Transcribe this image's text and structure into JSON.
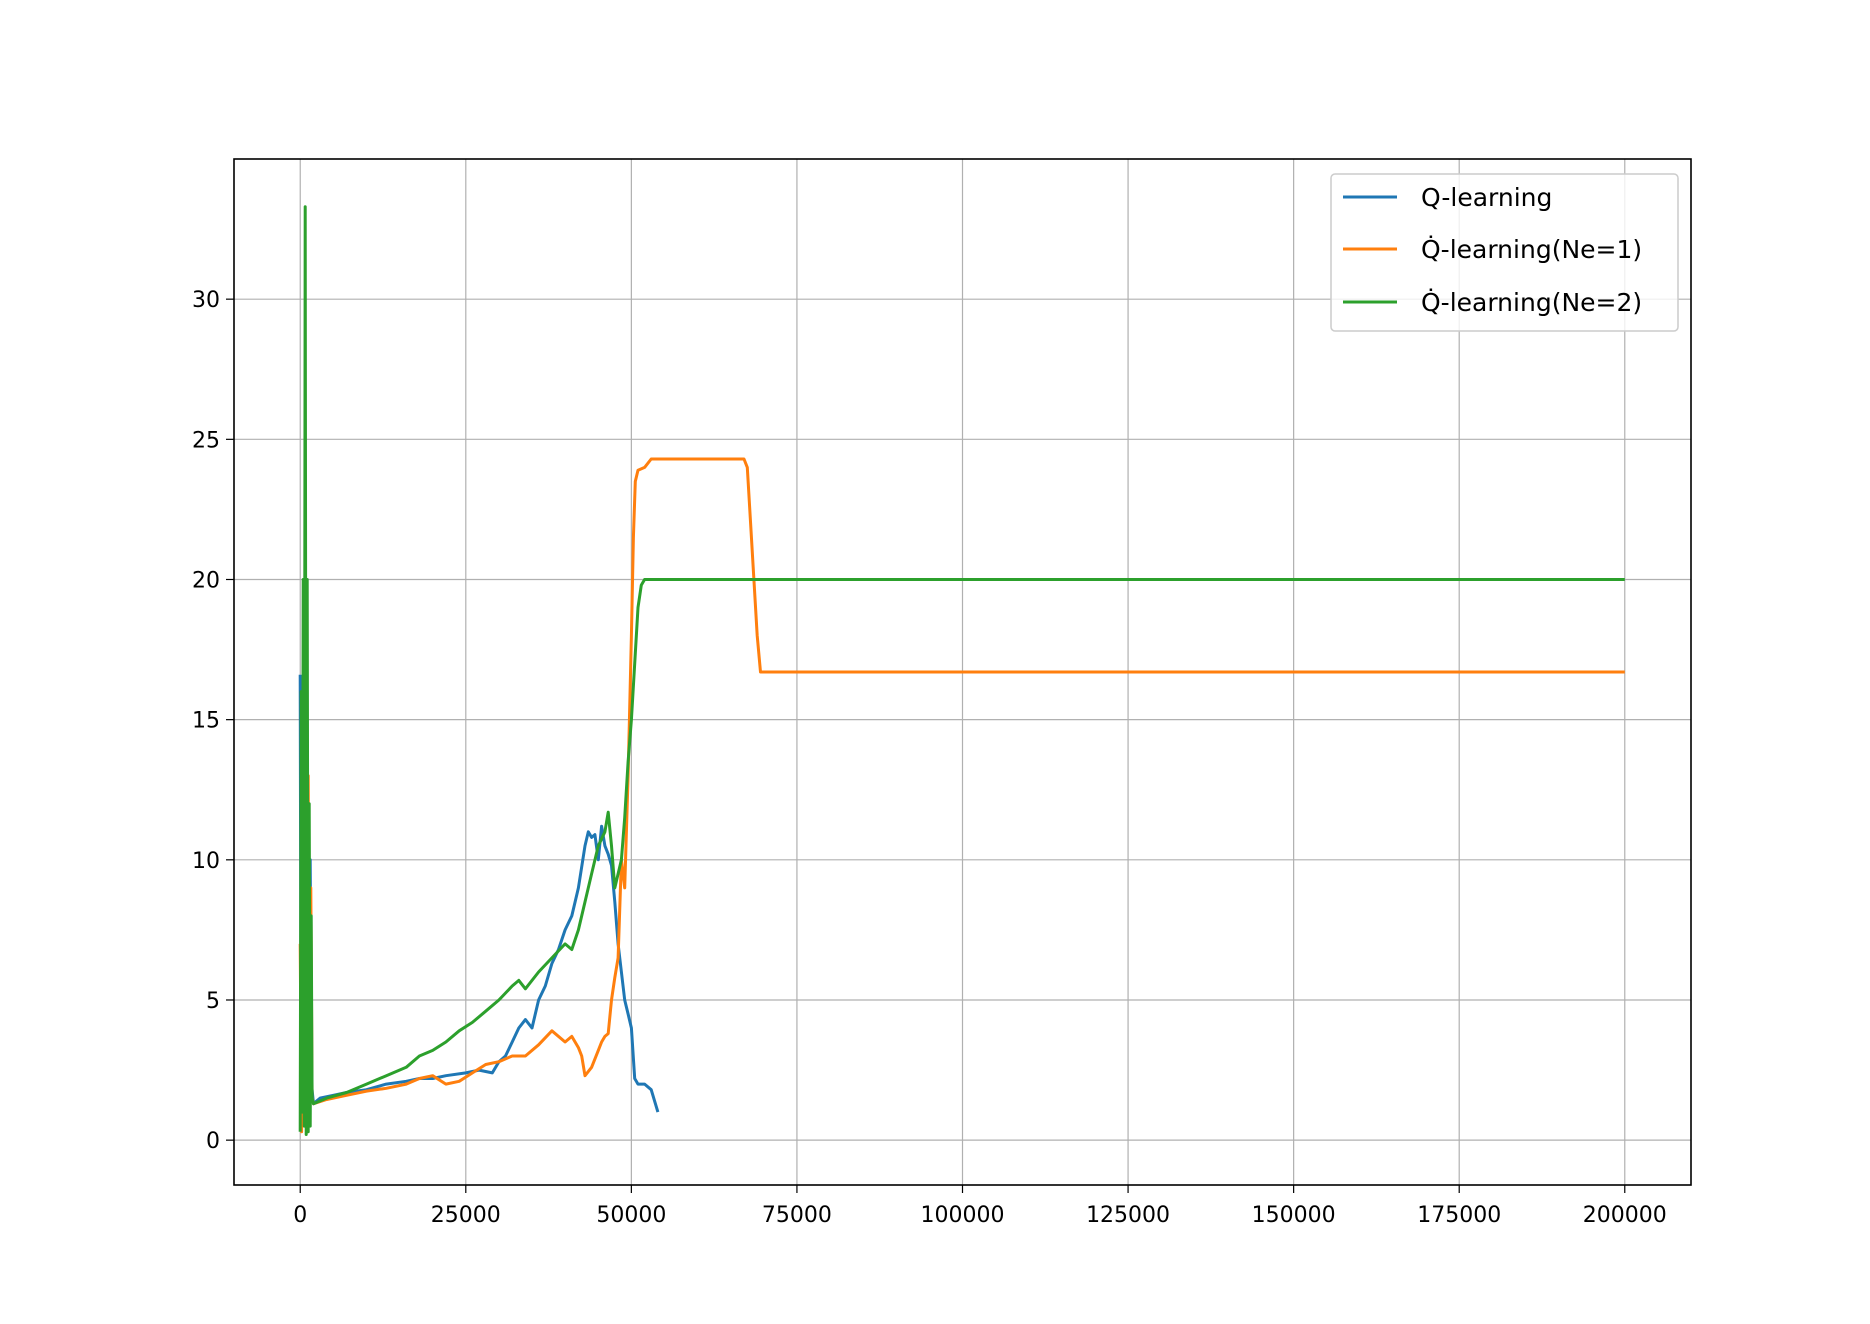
{
  "chart_data": {
    "type": "line",
    "title": "",
    "xlabel": "",
    "ylabel": "",
    "xlim": [
      -10000,
      210000
    ],
    "ylim": [
      -1.6,
      35
    ],
    "xticks": [
      0,
      25000,
      50000,
      75000,
      100000,
      125000,
      150000,
      175000,
      200000
    ],
    "yticks": [
      0,
      5,
      10,
      15,
      20,
      25,
      30
    ],
    "grid": true,
    "legend_position": "top-right",
    "series": [
      {
        "name": "Q-learning",
        "color": "#1f77b4",
        "x": [
          0,
          150,
          300,
          500,
          700,
          900,
          1100,
          1300,
          1500,
          1700,
          2000,
          3000,
          5000,
          7000,
          10000,
          13000,
          16000,
          18000,
          20000,
          22000,
          25000,
          27000,
          29000,
          30000,
          31000,
          32000,
          33000,
          34000,
          35000,
          36000,
          37000,
          38000,
          39000,
          40000,
          41000,
          42000,
          43000,
          43500,
          44000,
          44500,
          45000,
          45500,
          46000,
          46500,
          47000,
          47500,
          48000,
          48500,
          49000,
          49500,
          50000,
          50500,
          51000,
          52000,
          53000,
          54000
        ],
        "y": [
          16.6,
          0.5,
          15,
          2,
          13,
          0.5,
          12,
          1,
          10,
          2,
          1.3,
          1.5,
          1.6,
          1.7,
          1.8,
          2.0,
          2.1,
          2.2,
          2.2,
          2.3,
          2.4,
          2.5,
          2.4,
          2.8,
          3.0,
          3.5,
          4.0,
          4.3,
          4.0,
          5.0,
          5.5,
          6.3,
          6.8,
          7.5,
          8.0,
          9.0,
          10.5,
          11.0,
          10.8,
          10.9,
          10.0,
          11.2,
          10.5,
          10.2,
          9.8,
          8.5,
          7.0,
          6.0,
          5.0,
          4.5,
          4.0,
          2.2,
          2.0,
          2.0,
          1.8,
          1.0
        ]
      },
      {
        "name": "Q̇-learning(Ne=1)",
        "color": "#ff7f0e",
        "x": [
          0,
          200,
          400,
          600,
          800,
          1000,
          1200,
          1400,
          1600,
          1800,
          2000,
          4000,
          7000,
          10000,
          13000,
          16000,
          18000,
          20000,
          22000,
          24000,
          26000,
          28000,
          30000,
          32000,
          34000,
          36000,
          38000,
          40000,
          41000,
          42000,
          42500,
          43000,
          44000,
          45000,
          45500,
          46000,
          46500,
          47000,
          47500,
          48000,
          48500,
          49000,
          49500,
          50000,
          50300,
          50600,
          51000,
          52000,
          53000,
          55000,
          60000,
          65000,
          67000,
          67500,
          68000,
          68500,
          69000,
          69500,
          70000,
          80000,
          100000,
          125000,
          150000,
          175000,
          200000
        ],
        "y": [
          7,
          0.3,
          12,
          1,
          10,
          0.5,
          13,
          0.8,
          9,
          1.5,
          1.3,
          1.45,
          1.6,
          1.75,
          1.85,
          2.0,
          2.2,
          2.3,
          2.0,
          2.1,
          2.4,
          2.7,
          2.8,
          3.0,
          3.0,
          3.4,
          3.9,
          3.5,
          3.7,
          3.3,
          3.0,
          2.3,
          2.6,
          3.2,
          3.5,
          3.7,
          3.8,
          5.0,
          5.8,
          6.5,
          10.0,
          9.0,
          13.0,
          18.0,
          21.5,
          23.5,
          23.9,
          24.0,
          24.3,
          24.3,
          24.3,
          24.3,
          24.3,
          24.0,
          22.0,
          20.0,
          18.0,
          16.7,
          16.7,
          16.7,
          16.7,
          16.7,
          16.7,
          16.7,
          16.7
        ]
      },
      {
        "name": "Q̇-learning(Ne=2)",
        "color": "#2ca02c",
        "x": [
          0,
          150,
          300,
          450,
          600,
          750,
          900,
          1050,
          1200,
          1350,
          1500,
          1650,
          1800,
          2000,
          4000,
          7000,
          10000,
          13000,
          16000,
          18000,
          20000,
          22000,
          24000,
          26000,
          28000,
          30000,
          32000,
          33000,
          34000,
          36000,
          38000,
          40000,
          41000,
          42000,
          43000,
          44000,
          45000,
          46000,
          46500,
          47000,
          47500,
          48000,
          48500,
          49000,
          49500,
          50000,
          50500,
          51000,
          51500,
          52000,
          55000,
          60000,
          75000,
          100000,
          125000,
          150000,
          175000,
          200000
        ],
        "y": [
          0.3,
          16,
          1,
          20,
          0.5,
          33.3,
          0.2,
          20,
          0.3,
          12,
          0.5,
          8,
          1.5,
          1.3,
          1.5,
          1.7,
          2.0,
          2.3,
          2.6,
          3.0,
          3.2,
          3.5,
          3.9,
          4.2,
          4.6,
          5.0,
          5.5,
          5.7,
          5.4,
          6.0,
          6.5,
          7.0,
          6.8,
          7.5,
          8.5,
          9.5,
          10.5,
          11.0,
          11.7,
          10.5,
          9.0,
          9.5,
          10.0,
          11.5,
          13.5,
          15.0,
          17.0,
          19.0,
          19.8,
          20.0,
          20.0,
          20.0,
          20.0,
          20.0,
          20.0,
          20.0,
          20.0,
          20.0
        ]
      }
    ]
  }
}
